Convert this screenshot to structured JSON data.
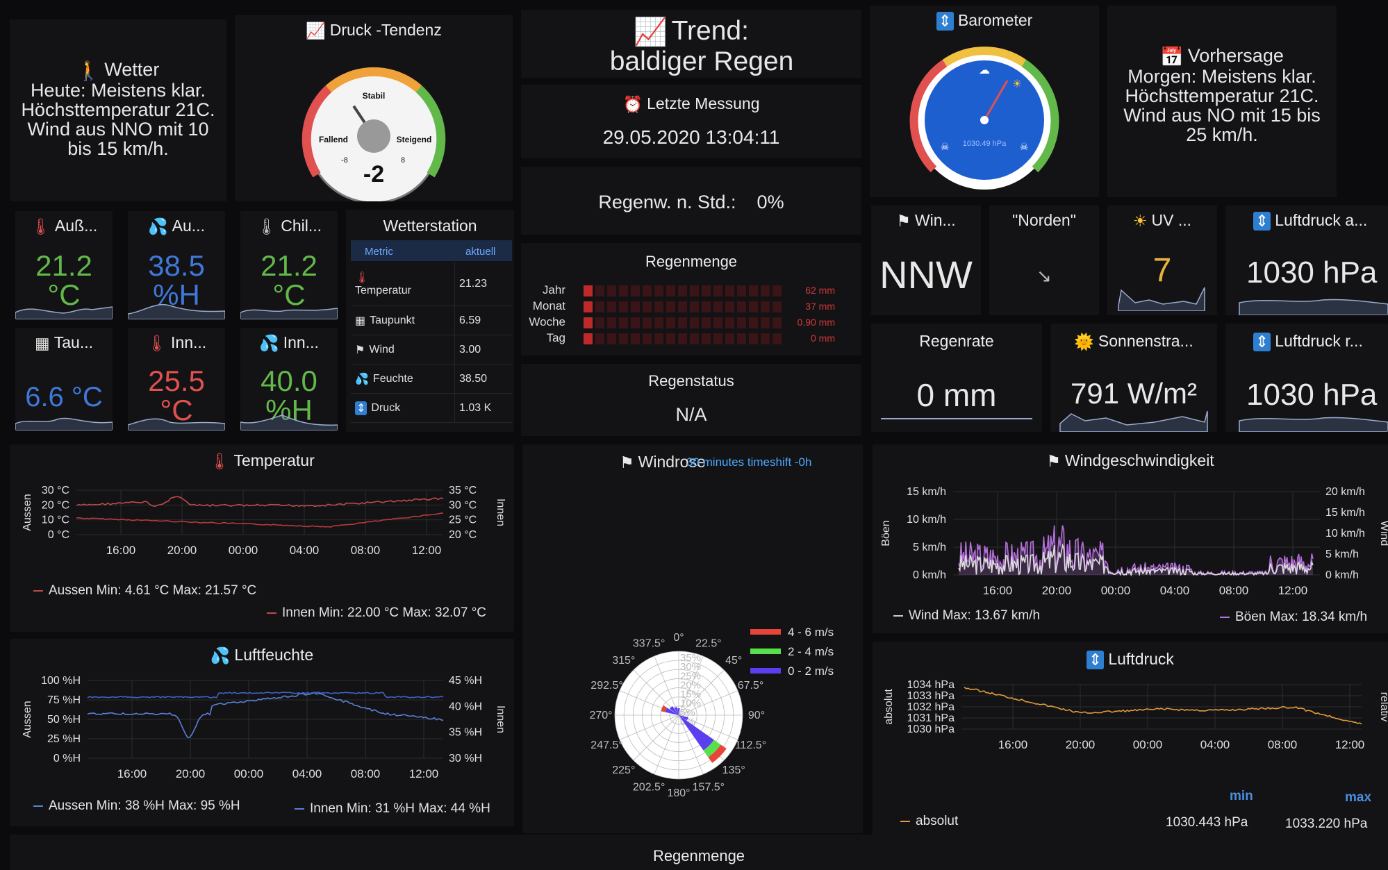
{
  "weather_today": {
    "title": "Wetter",
    "text": "Heute:    Meistens klar. Höchsttemperatur 21C. Wind aus NNO mit 10 bis 15 km/h."
  },
  "pressure_tendency": {
    "title": "Druck -Tendenz",
    "value": "-2",
    "label_stable": "Stabil",
    "label_falling": "Fallend",
    "label_rising": "Steigend",
    "tick_min": "-8",
    "tick_max": "8",
    "needle_value": -2,
    "range": [
      -8,
      8
    ]
  },
  "trend": {
    "label": "Trend:",
    "value": "baldiger Regen"
  },
  "last_measurement": {
    "title": "Letzte Messung",
    "value": "29.05.2020 13:04:11"
  },
  "rain_probability": {
    "label": "Regenw. n. Std.:",
    "value": "0%"
  },
  "barometer": {
    "title": "Barometer",
    "value": "1030.49 hPa"
  },
  "forecast": {
    "title": "Vorhersage",
    "text": "Morgen:    Meistens klar. Höchsttemperatur 21C. Wind aus NO mit 15 bis 25 km/h."
  },
  "tiles": [
    {
      "title": "Auß...",
      "value": "21.2",
      "unit": "°C",
      "color": "#63b84a",
      "icon": "thermometer-icon"
    },
    {
      "title": "Au...",
      "value": "38.5",
      "unit": "%H",
      "color": "#3f78d8",
      "icon": "droplets-icon"
    },
    {
      "title": "Chil...",
      "value": "21.2",
      "unit": "°C",
      "color": "#63b84a",
      "icon": "thermometer-icon"
    },
    {
      "title": "Tau...",
      "value": "6.6 °C",
      "unit": "",
      "color": "#3f78d8",
      "icon": "dewpoint-icon"
    },
    {
      "title": "Inn...",
      "value": "25.5",
      "unit": "°C",
      "color": "#e0514f",
      "icon": "thermometer-icon"
    },
    {
      "title": "Inn...",
      "value": "40.0",
      "unit": "%H",
      "color": "#63b84a",
      "icon": "droplets-icon"
    }
  ],
  "station": {
    "title": "Wetterstation",
    "col_metric": "Metric",
    "col_current": "aktuell",
    "rows": [
      {
        "label": "Temperatur",
        "value": "21.23",
        "icon": "thermometer-icon"
      },
      {
        "label": "Taupunkt",
        "value": "6.59",
        "icon": "dewpoint-icon"
      },
      {
        "label": "Wind",
        "value": "3.00",
        "icon": "wind-icon"
      },
      {
        "label": "Feuchte",
        "value": "38.50",
        "icon": "droplets-icon"
      },
      {
        "label": "Druck",
        "value": "1.03 K",
        "icon": "pressure-icon"
      }
    ]
  },
  "rain_amount": {
    "title": "Regenmenge",
    "rows": [
      {
        "label": "Jahr",
        "value": "62 mm"
      },
      {
        "label": "Monat",
        "value": "37 mm"
      },
      {
        "label": "Woche",
        "value": "0.90 mm"
      },
      {
        "label": "Tag",
        "value": "0 mm"
      }
    ]
  },
  "rain_status": {
    "title": "Regenstatus",
    "value": "N/A"
  },
  "wind_dir": {
    "title": "Win...",
    "value": "NNW"
  },
  "wind_text": {
    "title": "\"Norden\"",
    "icon": "arrow-se-icon"
  },
  "uv": {
    "title": "UV ...",
    "value": "7"
  },
  "pressure_abs_tile": {
    "title": "Luftdruck a...",
    "value": "1030 hPa"
  },
  "rain_rate": {
    "title": "Regenrate",
    "value": "0 mm"
  },
  "solar": {
    "title": "Sonnenstra...",
    "value": "791 W/m²"
  },
  "pressure_rel_tile": {
    "title": "Luftdruck r...",
    "value": "1030 hPa"
  },
  "temp_chart": {
    "title": "Temperatur",
    "ylabel_left": "Aussen",
    "ylabel_right": "Innen",
    "left_ticks": [
      "30 °C",
      "20 °C",
      "10 °C",
      "0 °C"
    ],
    "right_ticks": [
      "35 °C",
      "30 °C",
      "25 °C",
      "20 °C"
    ],
    "x_ticks": [
      "16:00",
      "20:00",
      "00:00",
      "04:00",
      "08:00",
      "12:00"
    ],
    "legend_outer": "Aussen  Min: 4.61 °C  Max: 21.57 °C",
    "legend_inner": "Innen  Min: 22.00 °C  Max: 32.07 °C"
  },
  "humidity_chart": {
    "title": "Luftfeuchte",
    "ylabel_left": "Aussen",
    "ylabel_right": "Innen",
    "left_ticks": [
      "100 %H",
      "75 %H",
      "50 %H",
      "25 %H",
      "0 %H"
    ],
    "right_ticks": [
      "45 %H",
      "40 %H",
      "35 %H",
      "30 %H"
    ],
    "x_ticks": [
      "16:00",
      "20:00",
      "00:00",
      "04:00",
      "08:00",
      "12:00"
    ],
    "legend_outer": "Aussen  Min: 38 %H  Max: 95 %H",
    "legend_inner": "Innen  Min: 31 %H  Max: 44 %H"
  },
  "windrose": {
    "title": "Windrose",
    "overlay": "30 minutes timeshift -0h",
    "directions": [
      "0°",
      "22.5°",
      "45°",
      "67.5°",
      "90°",
      "112.5°",
      "135°",
      "157.5°",
      "180°",
      "202.5°",
      "225°",
      "247.5°",
      "270°",
      "292.5°",
      "315°",
      "337.5°"
    ],
    "rings": [
      "35%",
      "30%",
      "25%",
      "20%",
      "15%",
      "10%",
      "5%",
      "0%"
    ],
    "legend": [
      {
        "label": "4 - 6 m/s",
        "color": "#e8443a"
      },
      {
        "label": "2 - 4 m/s",
        "color": "#58e04a"
      },
      {
        "label": "0 - 2 m/s",
        "color": "#5a3ff0"
      }
    ]
  },
  "wind_chart": {
    "title": "Windgeschwindigkeit",
    "ylabel_left": "Böen",
    "ylabel_right": "Wind",
    "left_ticks": [
      "15 km/h",
      "10 km/h",
      "5 km/h",
      "0 km/h"
    ],
    "right_ticks": [
      "20 km/h",
      "15 km/h",
      "10 km/h",
      "5 km/h",
      "0 km/h"
    ],
    "x_ticks": [
      "16:00",
      "20:00",
      "00:00",
      "04:00",
      "08:00",
      "12:00"
    ],
    "legend_wind": "Wind  Max: 13.67 km/h",
    "legend_gust": "Böen  Max: 18.34 km/h"
  },
  "pressure_chart": {
    "title": "Luftdruck",
    "ylabel_left": "absolut",
    "ylabel_right": "relativ",
    "left_ticks": [
      "1034 hPa",
      "1033 hPa",
      "1032 hPa",
      "1031 hPa",
      "1030 hPa"
    ],
    "x_ticks": [
      "16:00",
      "20:00",
      "00:00",
      "04:00",
      "08:00",
      "12:00"
    ],
    "col_min": "min",
    "col_max": "max",
    "legend_label": "absolut",
    "min_value": "1030.443 hPa",
    "max_value": "1033.220 hPa"
  },
  "bottom_panel": {
    "title": "Regenmenge"
  }
}
